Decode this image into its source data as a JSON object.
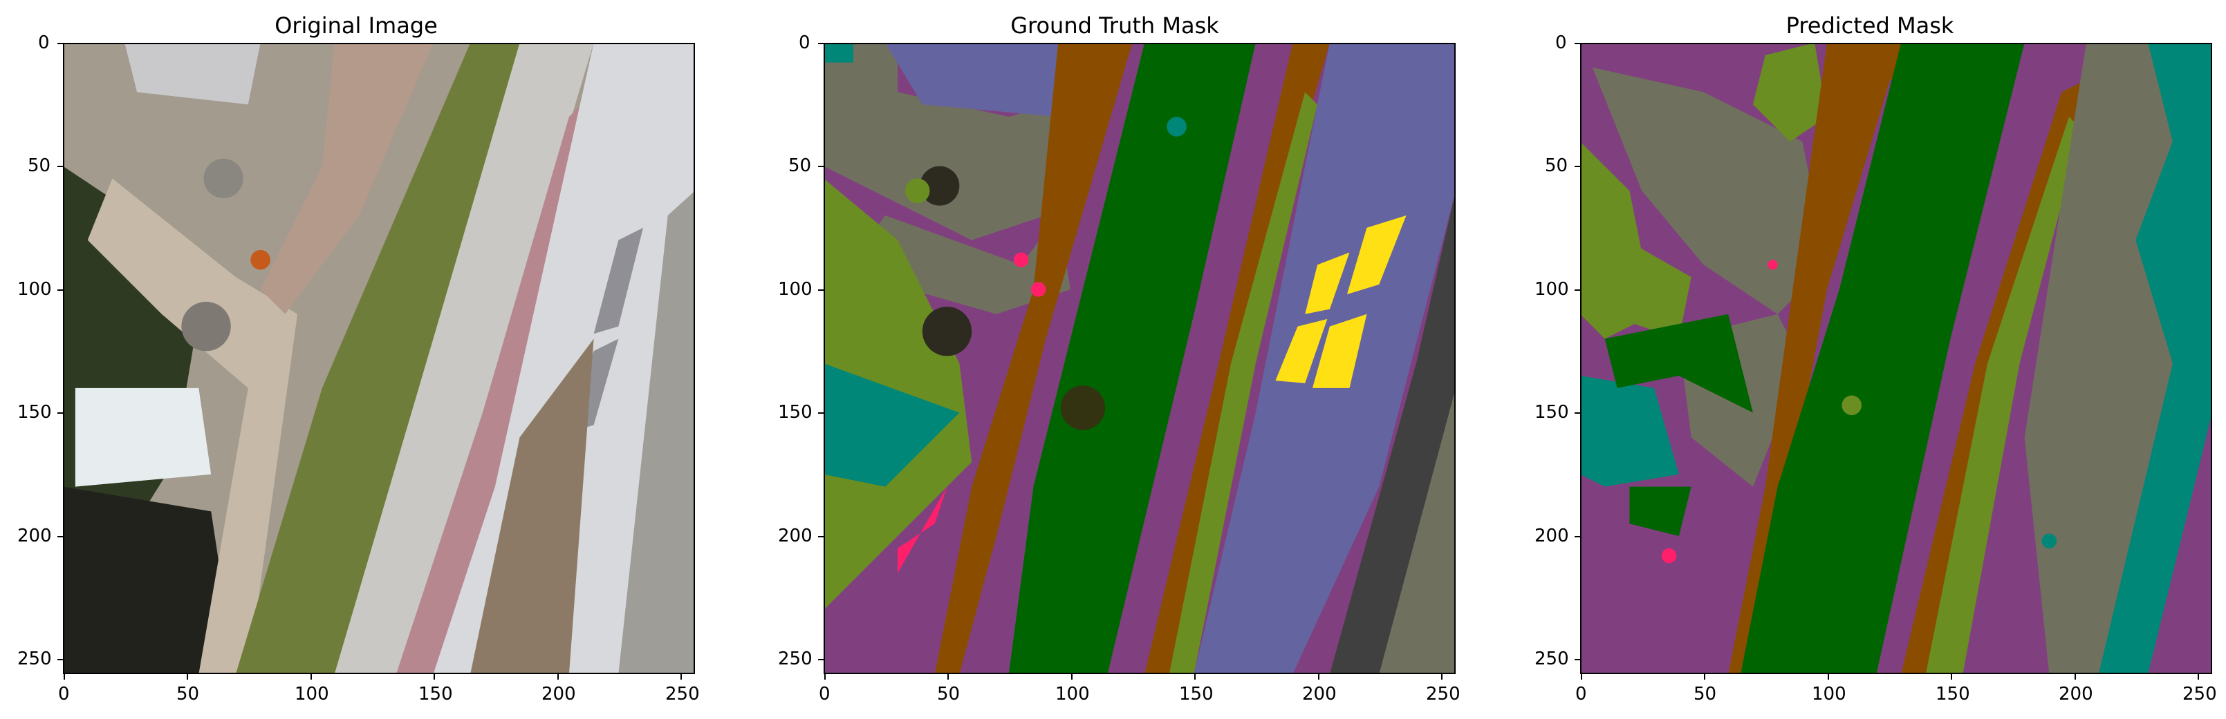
{
  "figure": {
    "panels": [
      {
        "id": "original",
        "title": "Original Image",
        "xticks": [
          "0",
          "50",
          "100",
          "150",
          "200",
          "250"
        ],
        "yticks": [
          "0",
          "50",
          "100",
          "150",
          "200",
          "250"
        ],
        "image_kind": "aerial photo (rotated): gravel, paths, grass, white roof with windows, flower border, banner"
      },
      {
        "id": "ground_truth",
        "title": "Ground Truth Mask",
        "xticks": [
          "0",
          "50",
          "100",
          "150",
          "200",
          "250"
        ],
        "yticks": [
          "0",
          "50",
          "100",
          "150",
          "200",
          "250"
        ],
        "image_kind": "segmentation mask"
      },
      {
        "id": "predicted",
        "title": "Predicted Mask",
        "xticks": [
          "0",
          "50",
          "100",
          "150",
          "200",
          "250"
        ],
        "yticks": [
          "0",
          "50",
          "100",
          "150",
          "200",
          "250"
        ],
        "image_kind": "segmentation mask"
      }
    ],
    "axis_range": [
      0,
      256
    ],
    "mask_colors": {
      "paved": "#80407f",
      "gravel": "#70705f",
      "vegetation": "#6b8e23",
      "grass": "#006400",
      "roof": "#6464a0",
      "window": "#ffe014",
      "water_teal": "#008778",
      "person_pink": "#ff1f6a",
      "dark_object": "#2d2a20",
      "dirt": "#8a4d00",
      "wall_gray": "#404040",
      "slate": "#7f7f7f"
    },
    "photo_colors": {
      "gravel": "#a29b8e",
      "path": "#c6b9a8",
      "grass": "#6f7d3a",
      "roof": "#d8d9dc",
      "roof_shadow": "#8f8f95",
      "flower": "#c08a8f",
      "dark": "#22221d",
      "tiles": "#8c7a66"
    }
  }
}
